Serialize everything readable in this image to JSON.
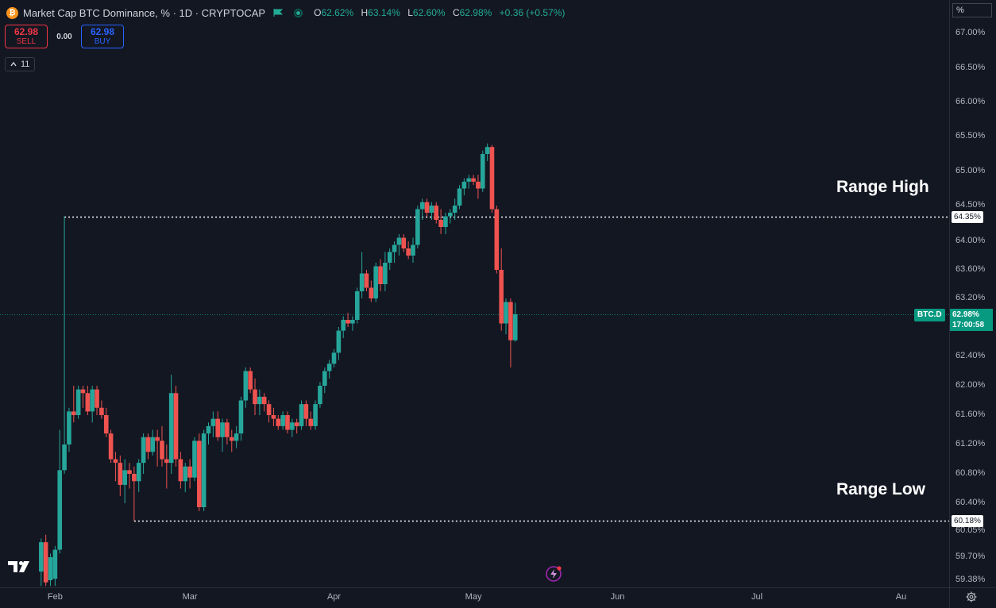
{
  "header": {
    "title": "Market Cap BTC Dominance, % · 1D · CRYPTOCAP",
    "symbol_icon": "bitcoin-icon",
    "ohlc": [
      {
        "k": "O",
        "v": "62.62%"
      },
      {
        "k": "H",
        "v": "63.14%"
      },
      {
        "k": "L",
        "v": "62.60%"
      },
      {
        "k": "C",
        "v": "62.98%"
      },
      {
        "k": "",
        "v": "+0.36 (+0.57%)"
      }
    ]
  },
  "trade": {
    "sell_price": "62.98",
    "sell_label": "SELL",
    "spread": "0.00",
    "buy_price": "62.98",
    "buy_label": "BUY"
  },
  "indicators": {
    "count": "11"
  },
  "axis": {
    "unit": "%"
  },
  "price_labels": {
    "range_high": "64.35%",
    "range_low": "60.18%",
    "last_price": "62.98%",
    "countdown": "17:00:58",
    "symbol": "BTC.D"
  },
  "annotations": {
    "range_high": "Range High",
    "range_low": "Range Low"
  },
  "colors": {
    "up": "#26a69a",
    "down": "#ef5350",
    "background": "#131722",
    "last_price": "#089981"
  },
  "chart_data": {
    "type": "candlestick",
    "title": "Market Cap BTC Dominance, % · 1D · CRYPTOCAP",
    "y_unit": "%",
    "ylim": [
      59.3,
      67.15
    ],
    "y_ticks": [
      {
        "value": 67.0,
        "label": "67.00%"
      },
      {
        "value": 66.5,
        "label": "66.50%"
      },
      {
        "value": 66.0,
        "label": "66.00%"
      },
      {
        "value": 65.5,
        "label": "65.50%"
      },
      {
        "value": 65.0,
        "label": "65.00%"
      },
      {
        "value": 64.5,
        "label": "64.50%"
      },
      {
        "value": 64.0,
        "label": "64.00%"
      },
      {
        "value": 63.6,
        "label": "63.60%"
      },
      {
        "value": 63.2,
        "label": "63.20%"
      },
      {
        "value": 62.8,
        "label": "62.80%"
      },
      {
        "value": 62.4,
        "label": "62.40%"
      },
      {
        "value": 62.0,
        "label": "62.00%"
      },
      {
        "value": 61.6,
        "label": "61.60%"
      },
      {
        "value": 61.2,
        "label": "61.20%"
      },
      {
        "value": 60.8,
        "label": "60.80%"
      },
      {
        "value": 60.4,
        "label": "60.40%"
      },
      {
        "value": 60.05,
        "label": "60.05%"
      },
      {
        "value": 59.7,
        "label": "59.70%"
      },
      {
        "value": 59.38,
        "label": "59.38%"
      }
    ],
    "x_ticks": [
      {
        "day": 0,
        "label": "Feb"
      },
      {
        "day": 29,
        "label": "Mar"
      },
      {
        "day": 60,
        "label": "Apr"
      },
      {
        "day": 90,
        "label": "May"
      },
      {
        "day": 121,
        "label": "Jun"
      },
      {
        "day": 151,
        "label": "Jul"
      },
      {
        "day": 182,
        "label": "Au"
      }
    ],
    "x_domain_days": [
      -11,
      192
    ],
    "horizontal_lines": [
      {
        "name": "Range High",
        "value": 64.35,
        "start_day": 2
      },
      {
        "name": "Range Low",
        "value": 60.18,
        "start_day": 17
      }
    ],
    "last_price": 62.98,
    "candles": [
      {
        "d": -3,
        "o": 59.5,
        "h": 59.95,
        "l": 59.3,
        "c": 59.9
      },
      {
        "d": -2,
        "o": 59.9,
        "h": 60.0,
        "l": 59.3,
        "c": 59.35
      },
      {
        "d": -1,
        "o": 59.38,
        "h": 59.75,
        "l": 59.3,
        "c": 59.7
      },
      {
        "d": 0,
        "o": 59.4,
        "h": 59.85,
        "l": 59.3,
        "c": 59.8
      },
      {
        "d": 1,
        "o": 59.8,
        "h": 61.4,
        "l": 59.75,
        "c": 60.85
      },
      {
        "d": 2,
        "o": 60.85,
        "h": 64.35,
        "l": 60.8,
        "c": 61.2
      },
      {
        "d": 3,
        "o": 61.2,
        "h": 61.7,
        "l": 61.1,
        "c": 61.65
      },
      {
        "d": 4,
        "o": 61.65,
        "h": 62.0,
        "l": 61.5,
        "c": 61.6
      },
      {
        "d": 5,
        "o": 61.6,
        "h": 62.0,
        "l": 61.55,
        "c": 61.95
      },
      {
        "d": 6,
        "o": 61.95,
        "h": 62.0,
        "l": 61.7,
        "c": 61.9
      },
      {
        "d": 7,
        "o": 61.9,
        "h": 62.0,
        "l": 61.6,
        "c": 61.65
      },
      {
        "d": 8,
        "o": 61.65,
        "h": 62.0,
        "l": 61.5,
        "c": 61.95
      },
      {
        "d": 9,
        "o": 61.95,
        "h": 62.0,
        "l": 61.6,
        "c": 61.7
      },
      {
        "d": 10,
        "o": 61.7,
        "h": 61.8,
        "l": 61.55,
        "c": 61.6
      },
      {
        "d": 11,
        "o": 61.6,
        "h": 61.7,
        "l": 61.3,
        "c": 61.35
      },
      {
        "d": 12,
        "o": 61.35,
        "h": 61.4,
        "l": 60.95,
        "c": 61.0
      },
      {
        "d": 13,
        "o": 61.0,
        "h": 61.1,
        "l": 60.7,
        "c": 60.95
      },
      {
        "d": 14,
        "o": 60.95,
        "h": 61.05,
        "l": 60.5,
        "c": 60.65
      },
      {
        "d": 15,
        "o": 60.65,
        "h": 61.0,
        "l": 60.4,
        "c": 60.85
      },
      {
        "d": 16,
        "o": 60.85,
        "h": 60.95,
        "l": 60.6,
        "c": 60.8
      },
      {
        "d": 17,
        "o": 60.8,
        "h": 60.9,
        "l": 60.18,
        "c": 60.7
      },
      {
        "d": 18,
        "o": 60.7,
        "h": 61.0,
        "l": 60.55,
        "c": 60.95
      },
      {
        "d": 19,
        "o": 60.95,
        "h": 61.35,
        "l": 60.8,
        "c": 61.3
      },
      {
        "d": 20,
        "o": 61.3,
        "h": 61.35,
        "l": 61.0,
        "c": 61.1
      },
      {
        "d": 21,
        "o": 61.1,
        "h": 61.4,
        "l": 61.05,
        "c": 61.3
      },
      {
        "d": 22,
        "o": 61.3,
        "h": 61.4,
        "l": 60.9,
        "c": 61.25
      },
      {
        "d": 23,
        "o": 61.25,
        "h": 61.45,
        "l": 60.9,
        "c": 61.0
      },
      {
        "d": 24,
        "o": 61.0,
        "h": 61.2,
        "l": 60.6,
        "c": 60.95
      },
      {
        "d": 25,
        "o": 60.95,
        "h": 62.15,
        "l": 60.8,
        "c": 61.9
      },
      {
        "d": 26,
        "o": 61.9,
        "h": 62.0,
        "l": 60.9,
        "c": 61.0
      },
      {
        "d": 27,
        "o": 61.0,
        "h": 61.1,
        "l": 60.6,
        "c": 60.7
      },
      {
        "d": 28,
        "o": 60.7,
        "h": 60.95,
        "l": 60.55,
        "c": 60.9
      },
      {
        "d": 29,
        "o": 60.9,
        "h": 61.0,
        "l": 60.6,
        "c": 60.75
      },
      {
        "d": 30,
        "o": 60.75,
        "h": 61.3,
        "l": 60.7,
        "c": 61.25
      },
      {
        "d": 31,
        "o": 61.25,
        "h": 61.35,
        "l": 60.3,
        "c": 60.35
      },
      {
        "d": 32,
        "o": 60.35,
        "h": 61.4,
        "l": 60.3,
        "c": 61.35
      },
      {
        "d": 33,
        "o": 61.35,
        "h": 61.5,
        "l": 61.2,
        "c": 61.45
      },
      {
        "d": 34,
        "o": 61.45,
        "h": 61.65,
        "l": 61.3,
        "c": 61.55
      },
      {
        "d": 35,
        "o": 61.55,
        "h": 61.65,
        "l": 61.25,
        "c": 61.3
      },
      {
        "d": 36,
        "o": 61.3,
        "h": 61.55,
        "l": 61.1,
        "c": 61.5
      },
      {
        "d": 37,
        "o": 61.5,
        "h": 61.55,
        "l": 61.2,
        "c": 61.3
      },
      {
        "d": 38,
        "o": 61.3,
        "h": 61.4,
        "l": 61.1,
        "c": 61.25
      },
      {
        "d": 39,
        "o": 61.25,
        "h": 61.45,
        "l": 61.15,
        "c": 61.35
      },
      {
        "d": 40,
        "o": 61.35,
        "h": 61.85,
        "l": 61.25,
        "c": 61.8
      },
      {
        "d": 41,
        "o": 61.8,
        "h": 62.25,
        "l": 61.7,
        "c": 62.2
      },
      {
        "d": 42,
        "o": 62.2,
        "h": 62.25,
        "l": 61.9,
        "c": 61.95
      },
      {
        "d": 43,
        "o": 61.95,
        "h": 62.1,
        "l": 61.6,
        "c": 61.75
      },
      {
        "d": 44,
        "o": 61.75,
        "h": 61.95,
        "l": 61.6,
        "c": 61.85
      },
      {
        "d": 45,
        "o": 61.85,
        "h": 61.9,
        "l": 61.65,
        "c": 61.75
      },
      {
        "d": 46,
        "o": 61.75,
        "h": 61.8,
        "l": 61.5,
        "c": 61.6
      },
      {
        "d": 47,
        "o": 61.6,
        "h": 61.7,
        "l": 61.45,
        "c": 61.55
      },
      {
        "d": 48,
        "o": 61.55,
        "h": 61.6,
        "l": 61.4,
        "c": 61.45
      },
      {
        "d": 49,
        "o": 61.45,
        "h": 61.65,
        "l": 61.4,
        "c": 61.6
      },
      {
        "d": 50,
        "o": 61.6,
        "h": 61.65,
        "l": 61.35,
        "c": 61.4
      },
      {
        "d": 51,
        "o": 61.4,
        "h": 61.55,
        "l": 61.3,
        "c": 61.5
      },
      {
        "d": 52,
        "o": 61.5,
        "h": 61.55,
        "l": 61.35,
        "c": 61.45
      },
      {
        "d": 53,
        "o": 61.45,
        "h": 61.8,
        "l": 61.4,
        "c": 61.75
      },
      {
        "d": 54,
        "o": 61.75,
        "h": 61.8,
        "l": 61.45,
        "c": 61.55
      },
      {
        "d": 55,
        "o": 61.55,
        "h": 61.65,
        "l": 61.4,
        "c": 61.45
      },
      {
        "d": 56,
        "o": 61.45,
        "h": 61.8,
        "l": 61.4,
        "c": 61.75
      },
      {
        "d": 57,
        "o": 61.75,
        "h": 62.05,
        "l": 61.7,
        "c": 62.0
      },
      {
        "d": 58,
        "o": 62.0,
        "h": 62.25,
        "l": 61.9,
        "c": 62.2
      },
      {
        "d": 59,
        "o": 62.2,
        "h": 62.35,
        "l": 62.1,
        "c": 62.3
      },
      {
        "d": 60,
        "o": 62.3,
        "h": 62.5,
        "l": 62.25,
        "c": 62.45
      },
      {
        "d": 61,
        "o": 62.45,
        "h": 62.8,
        "l": 62.35,
        "c": 62.75
      },
      {
        "d": 62,
        "o": 62.75,
        "h": 62.95,
        "l": 62.65,
        "c": 62.9
      },
      {
        "d": 63,
        "o": 62.9,
        "h": 63.0,
        "l": 62.8,
        "c": 62.85
      },
      {
        "d": 64,
        "o": 62.85,
        "h": 62.95,
        "l": 62.75,
        "c": 62.9
      },
      {
        "d": 65,
        "o": 62.9,
        "h": 63.35,
        "l": 62.85,
        "c": 63.3
      },
      {
        "d": 66,
        "o": 63.3,
        "h": 63.85,
        "l": 63.2,
        "c": 63.55
      },
      {
        "d": 67,
        "o": 63.55,
        "h": 63.6,
        "l": 63.3,
        "c": 63.35
      },
      {
        "d": 68,
        "o": 63.35,
        "h": 63.45,
        "l": 63.15,
        "c": 63.2
      },
      {
        "d": 69,
        "o": 63.2,
        "h": 63.7,
        "l": 63.15,
        "c": 63.65
      },
      {
        "d": 70,
        "o": 63.65,
        "h": 63.75,
        "l": 63.3,
        "c": 63.4
      },
      {
        "d": 71,
        "o": 63.4,
        "h": 63.85,
        "l": 63.3,
        "c": 63.7
      },
      {
        "d": 72,
        "o": 63.7,
        "h": 63.9,
        "l": 63.6,
        "c": 63.85
      },
      {
        "d": 73,
        "o": 63.85,
        "h": 64.0,
        "l": 63.7,
        "c": 63.95
      },
      {
        "d": 74,
        "o": 63.95,
        "h": 64.1,
        "l": 63.8,
        "c": 64.05
      },
      {
        "d": 75,
        "o": 64.05,
        "h": 64.1,
        "l": 63.85,
        "c": 63.9
      },
      {
        "d": 76,
        "o": 63.9,
        "h": 64.0,
        "l": 63.75,
        "c": 63.8
      },
      {
        "d": 77,
        "o": 63.8,
        "h": 64.05,
        "l": 63.7,
        "c": 63.95
      },
      {
        "d": 78,
        "o": 63.95,
        "h": 64.5,
        "l": 63.9,
        "c": 64.45
      },
      {
        "d": 79,
        "o": 64.45,
        "h": 64.6,
        "l": 64.3,
        "c": 64.55
      },
      {
        "d": 80,
        "o": 64.55,
        "h": 64.6,
        "l": 64.35,
        "c": 64.4
      },
      {
        "d": 81,
        "o": 64.4,
        "h": 64.55,
        "l": 64.3,
        "c": 64.5
      },
      {
        "d": 82,
        "o": 64.5,
        "h": 64.55,
        "l": 64.25,
        "c": 64.3
      },
      {
        "d": 83,
        "o": 64.3,
        "h": 64.45,
        "l": 64.1,
        "c": 64.2
      },
      {
        "d": 84,
        "o": 64.2,
        "h": 64.4,
        "l": 64.1,
        "c": 64.35
      },
      {
        "d": 85,
        "o": 64.35,
        "h": 64.45,
        "l": 64.25,
        "c": 64.4
      },
      {
        "d": 86,
        "o": 64.4,
        "h": 64.6,
        "l": 64.3,
        "c": 64.5
      },
      {
        "d": 87,
        "o": 64.5,
        "h": 64.8,
        "l": 64.45,
        "c": 64.75
      },
      {
        "d": 88,
        "o": 64.75,
        "h": 64.9,
        "l": 64.65,
        "c": 64.85
      },
      {
        "d": 89,
        "o": 64.85,
        "h": 64.95,
        "l": 64.75,
        "c": 64.9
      },
      {
        "d": 90,
        "o": 64.9,
        "h": 64.95,
        "l": 64.8,
        "c": 64.85
      },
      {
        "d": 91,
        "o": 64.85,
        "h": 64.95,
        "l": 64.6,
        "c": 64.75
      },
      {
        "d": 92,
        "o": 64.75,
        "h": 65.3,
        "l": 64.7,
        "c": 65.25
      },
      {
        "d": 93,
        "o": 65.25,
        "h": 65.4,
        "l": 65.15,
        "c": 65.35
      },
      {
        "d": 94,
        "o": 65.35,
        "h": 65.38,
        "l": 64.4,
        "c": 64.45
      },
      {
        "d": 95,
        "o": 64.45,
        "h": 64.5,
        "l": 63.55,
        "c": 63.6
      },
      {
        "d": 96,
        "o": 63.6,
        "h": 63.9,
        "l": 62.75,
        "c": 62.85
      },
      {
        "d": 97,
        "o": 62.85,
        "h": 63.2,
        "l": 62.7,
        "c": 63.15
      },
      {
        "d": 98,
        "o": 63.15,
        "h": 63.2,
        "l": 62.25,
        "c": 62.62
      },
      {
        "d": 99,
        "o": 62.62,
        "h": 63.14,
        "l": 62.6,
        "c": 62.98
      }
    ]
  }
}
